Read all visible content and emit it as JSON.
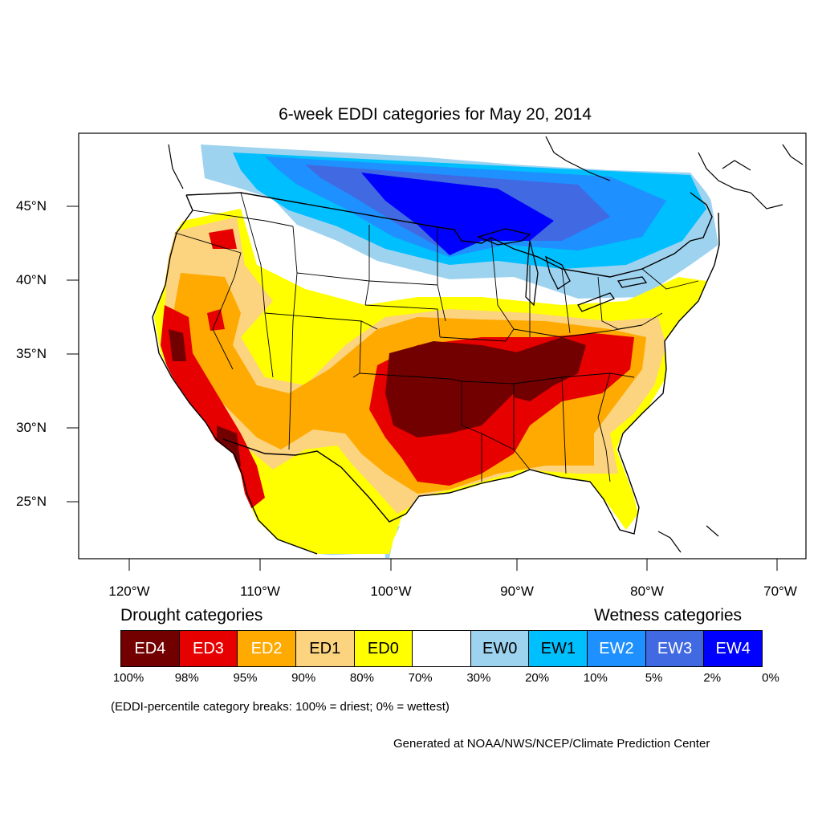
{
  "title": "6-week EDDI categories for May 20, 2014",
  "lat_labels": [
    "45°N",
    "40°N",
    "35°N",
    "30°N",
    "25°N"
  ],
  "lon_labels": [
    "120°W",
    "110°W",
    "100°W",
    "90°W",
    "80°W",
    "70°W"
  ],
  "legend": {
    "drought_title": "Drought categories",
    "wetness_title": "Wetness categories",
    "categories": [
      {
        "label": "ED4",
        "color": "#730000",
        "text_color": "#ffffff"
      },
      {
        "label": "ED3",
        "color": "#e60000",
        "text_color": "#ffffff"
      },
      {
        "label": "ED2",
        "color": "#ffaa00",
        "text_color": "#ffffff"
      },
      {
        "label": "ED1",
        "color": "#fcd37f",
        "text_color": "#000000"
      },
      {
        "label": "ED0",
        "color": "#ffff00",
        "text_color": "#000000"
      },
      {
        "label": "",
        "color": "#ffffff",
        "text_color": "#000000"
      },
      {
        "label": "EW0",
        "color": "#9ed3f0",
        "text_color": "#000000"
      },
      {
        "label": "EW1",
        "color": "#00bfff",
        "text_color": "#000000"
      },
      {
        "label": "EW2",
        "color": "#1e90ff",
        "text_color": "#ffffff"
      },
      {
        "label": "EW3",
        "color": "#4169e1",
        "text_color": "#ffffff"
      },
      {
        "label": "EW4",
        "color": "#0000ff",
        "text_color": "#ffffff"
      }
    ],
    "percentiles": [
      "100%",
      "98%",
      "95%",
      "90%",
      "80%",
      "70%",
      "30%",
      "20%",
      "10%",
      "5%",
      "2%",
      "0%"
    ]
  },
  "note": "(EDDI-percentile category breaks: 100% = driest; 0% = wettest)",
  "credit": "Generated at NOAA/NWS/NCEP/Climate Prediction Center"
}
